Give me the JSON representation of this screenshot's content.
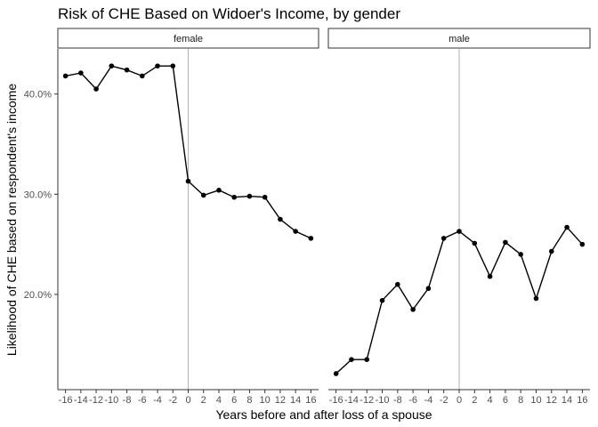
{
  "chart_data": {
    "type": "line",
    "title": "Risk of CHE Based on Widoer's Income, by gender",
    "xlabel": "Years before and after loss of a spouse",
    "ylabel": "Likelihood of CHE based on respondent's income",
    "x": [
      -16,
      -14,
      -12,
      -10,
      -8,
      -6,
      -4,
      -2,
      0,
      2,
      4,
      6,
      8,
      10,
      12,
      14,
      16
    ],
    "x_tick_labels": [
      "-16",
      "-14",
      "-12",
      "-10",
      "-8",
      "-6",
      "-4",
      "-2",
      "0",
      "2",
      "4",
      "6",
      "8",
      "10",
      "12",
      "14",
      "16"
    ],
    "xlim": [
      -17,
      17
    ],
    "ylim": [
      0.105,
      0.445
    ],
    "y_ticks": [
      0.2,
      0.3,
      0.4
    ],
    "y_tick_labels": [
      "20.0%",
      "30.0%",
      "40.0%"
    ],
    "reference_line_x": 0,
    "grid": false,
    "facets": [
      {
        "label": "female",
        "values": [
          0.418,
          0.421,
          0.405,
          0.428,
          0.424,
          0.418,
          0.428,
          0.428,
          0.313,
          0.299,
          0.304,
          0.297,
          0.298,
          0.297,
          0.275,
          0.263,
          0.256
        ]
      },
      {
        "label": "male",
        "values": [
          0.121,
          0.135,
          0.135,
          0.194,
          0.21,
          0.185,
          0.206,
          0.256,
          0.263,
          0.251,
          0.218,
          0.252,
          0.24,
          0.196,
          0.243,
          0.267,
          0.25
        ]
      }
    ],
    "colors": {
      "line": "#000000",
      "point": "#000000",
      "vline": "#b3b3b3",
      "axis": "#333333",
      "strip_fill": "#ffffff",
      "strip_border": "#333333"
    }
  }
}
